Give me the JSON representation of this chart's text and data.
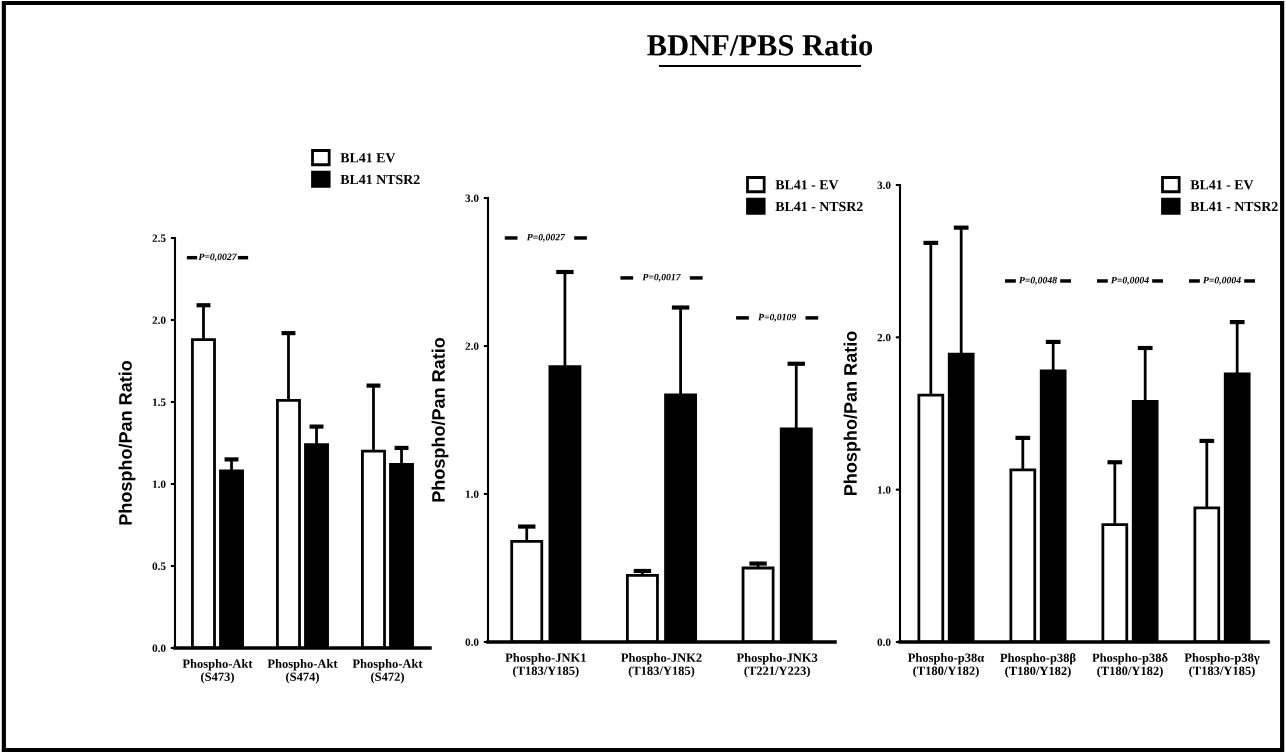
{
  "chart_data": [
    {
      "type": "bar",
      "ylabel": "Phospho/Pan Ratio",
      "categories": [
        "Phospho-Akt\n(S473)",
        "Phospho-Akt\n(S474)",
        "Phospho-Akt\n(S472)"
      ],
      "series": [
        {
          "name": "BL41 EV",
          "color": "#ffffff",
          "values": [
            1.88,
            1.51,
            1.2
          ],
          "errors": [
            [
              1.88,
              2.09
            ],
            [
              1.51,
              1.92
            ],
            [
              1.2,
              1.6
            ]
          ]
        },
        {
          "name": "BL41 NTSR2",
          "color": "#000000",
          "values": [
            1.08,
            1.24,
            1.12
          ],
          "errors": [
            [
              1.08,
              1.15
            ],
            [
              1.24,
              1.35
            ],
            [
              1.12,
              1.22
            ]
          ]
        }
      ],
      "ylim": [
        0,
        2.5
      ],
      "yticks": [
        {
          "value": 0,
          "label": "0.0"
        },
        {
          "value": 0.5,
          "label": "0.5"
        },
        {
          "value": 1,
          "label": "1.0"
        },
        {
          "value": 1.5,
          "label": "1.5"
        },
        {
          "value": 2,
          "label": "2.0"
        },
        {
          "value": 2.5,
          "label": "2.5"
        }
      ],
      "annotations": [
        "P=0,0027"
      ],
      "legend": "top right",
      "grid": false
    },
    {
      "type": "bar",
      "title": "BDNF/PBS Ratio",
      "ylabel": "Phospho/Pan Ratio",
      "categories": [
        "Phospho-JNK1\n(T183/Y185)",
        "Phospho-JNK2\n(T183/Y185)",
        "Phospho-JNK3\n(T221/Y223)"
      ],
      "series": [
        {
          "name": "BL41 - EV",
          "color": "#ffffff",
          "values": [
            0.68,
            0.45,
            0.5
          ],
          "errors": [
            [
              0.68,
              0.78
            ],
            [
              0.45,
              0.48
            ],
            [
              0.5,
              0.53
            ]
          ]
        },
        {
          "name": "BL41 - NTSR2",
          "color": "#000000",
          "values": [
            1.86,
            1.67,
            1.44
          ],
          "errors": [
            [
              1.86,
              2.5
            ],
            [
              1.67,
              2.26
            ],
            [
              1.44,
              1.88
            ]
          ]
        }
      ],
      "ylim": [
        0,
        3.0
      ],
      "yticks": [
        {
          "value": 0,
          "label": "0.0"
        },
        {
          "value": 1,
          "label": "1.0"
        },
        {
          "value": 2,
          "label": "2.0"
        },
        {
          "value": 3,
          "label": "3.0"
        }
      ],
      "annotations": [
        "P=0,0027",
        "P=0,0017",
        "P=0,0109"
      ],
      "legend": "top right",
      "grid": false
    },
    {
      "type": "bar",
      "ylabel": "Phospho/Pan Ratio",
      "categories": [
        "Phospho-p38α\n(T180/Y182)",
        "Phospho-p38β\n(T180/Y182)",
        "Phospho-p38δ\n(T180/Y182)",
        "Phospho-p38γ\n(T183/Y185)"
      ],
      "series": [
        {
          "name": "BL41 - EV",
          "color": "#ffffff",
          "values": [
            1.62,
            1.13,
            0.77,
            0.88
          ],
          "errors": [
            [
              1.62,
              2.62
            ],
            [
              1.13,
              1.34
            ],
            [
              0.77,
              1.18
            ],
            [
              0.88,
              1.32
            ]
          ]
        },
        {
          "name": "BL41 - NTSR2",
          "color": "#000000",
          "values": [
            1.89,
            1.78,
            1.58,
            1.76
          ],
          "errors": [
            [
              1.89,
              2.72
            ],
            [
              1.78,
              1.97
            ],
            [
              1.58,
              1.93
            ],
            [
              1.76,
              2.1
            ]
          ]
        }
      ],
      "ylim": [
        0,
        3.0
      ],
      "yticks": [
        {
          "value": 0,
          "label": "0.0"
        },
        {
          "value": 1,
          "label": "1.0"
        },
        {
          "value": 2,
          "label": "2.0"
        },
        {
          "value": 3,
          "label": "3.0"
        }
      ],
      "annotations": [
        "P=0,0048",
        "P=0,0004",
        "P=0,0004"
      ],
      "legend": "top right",
      "grid": false
    }
  ]
}
